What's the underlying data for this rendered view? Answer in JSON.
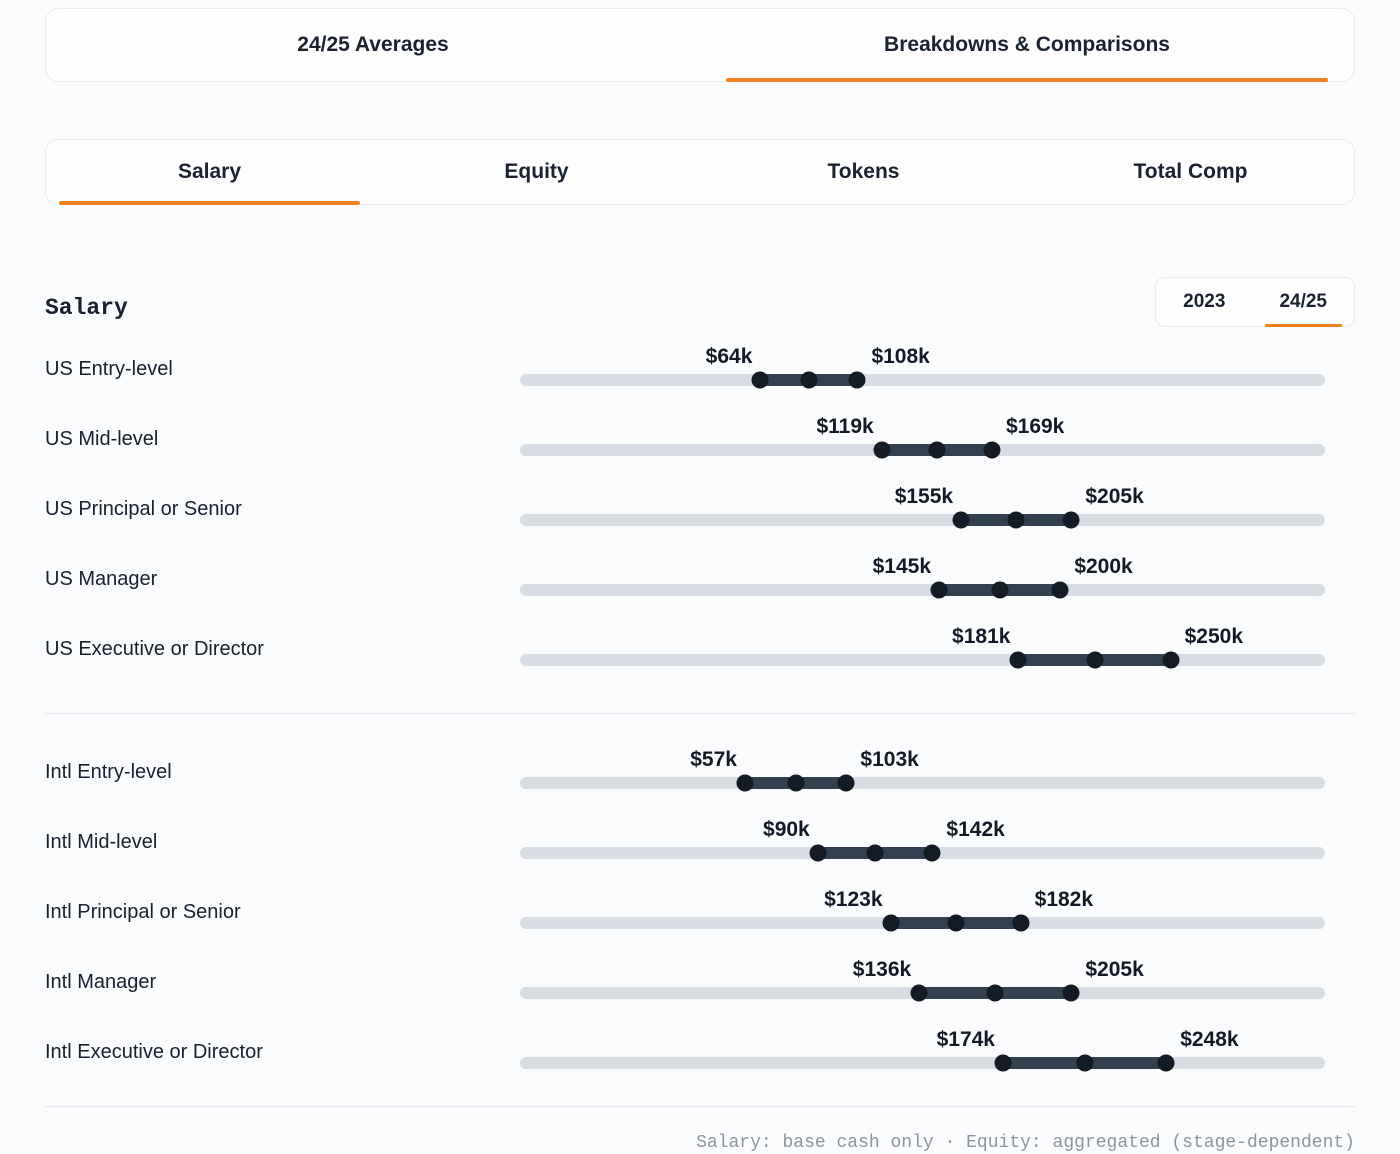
{
  "colors": {
    "accent": "#ef8220",
    "track": "#d8dde3",
    "range_bar": "#33404f",
    "dot": "#141b24",
    "text": "#16202e",
    "muted": "#8d949e",
    "background": "#fafbfc"
  },
  "tabs_primary": {
    "items": [
      {
        "label": "24/25 Averages",
        "active": false
      },
      {
        "label": "Breakdowns & Comparisons",
        "active": true
      }
    ]
  },
  "tabs_secondary": {
    "items": [
      {
        "label": "Salary",
        "active": true
      },
      {
        "label": "Equity",
        "active": false
      },
      {
        "label": "Tokens",
        "active": false
      },
      {
        "label": "Total Comp",
        "active": false
      }
    ]
  },
  "section": {
    "title": "Salary"
  },
  "year_toggle": {
    "options": [
      {
        "label": "2023",
        "active": false
      },
      {
        "label": "24/25",
        "active": true
      }
    ]
  },
  "chart_data": {
    "type": "bar",
    "subtype": "horizontal-range-dumbbell",
    "title": "Salary",
    "unit": "USD thousands",
    "selected_year": "24/25",
    "axis_min": -45,
    "axis_max": 320,
    "legend": "none",
    "grid": false,
    "groups": [
      {
        "name": "US",
        "rows": [
          {
            "label": "US Entry-level",
            "min": 64,
            "max": 108,
            "min_label": "$64k",
            "max_label": "$108k"
          },
          {
            "label": "US Mid-level",
            "min": 119,
            "max": 169,
            "min_label": "$119k",
            "max_label": "$169k"
          },
          {
            "label": "US Principal or Senior",
            "min": 155,
            "max": 205,
            "min_label": "$155k",
            "max_label": "$205k"
          },
          {
            "label": "US Manager",
            "min": 145,
            "max": 200,
            "min_label": "$145k",
            "max_label": "$200k"
          },
          {
            "label": "US Executive or Director",
            "min": 181,
            "max": 250,
            "min_label": "$181k",
            "max_label": "$250k"
          }
        ]
      },
      {
        "name": "Intl",
        "rows": [
          {
            "label": "Intl Entry-level",
            "min": 57,
            "max": 103,
            "min_label": "$57k",
            "max_label": "$103k"
          },
          {
            "label": "Intl Mid-level",
            "min": 90,
            "max": 142,
            "min_label": "$90k",
            "max_label": "$142k"
          },
          {
            "label": "Intl Principal or Senior",
            "min": 123,
            "max": 182,
            "min_label": "$123k",
            "max_label": "$182k"
          },
          {
            "label": "Intl Manager",
            "min": 136,
            "max": 205,
            "min_label": "$136k",
            "max_label": "$205k"
          },
          {
            "label": "Intl Executive or Director",
            "min": 174,
            "max": 248,
            "min_label": "$174k",
            "max_label": "$248k"
          }
        ]
      }
    ]
  },
  "footer": {
    "note": "Salary: base cash only · Equity: aggregated (stage-dependent)"
  }
}
